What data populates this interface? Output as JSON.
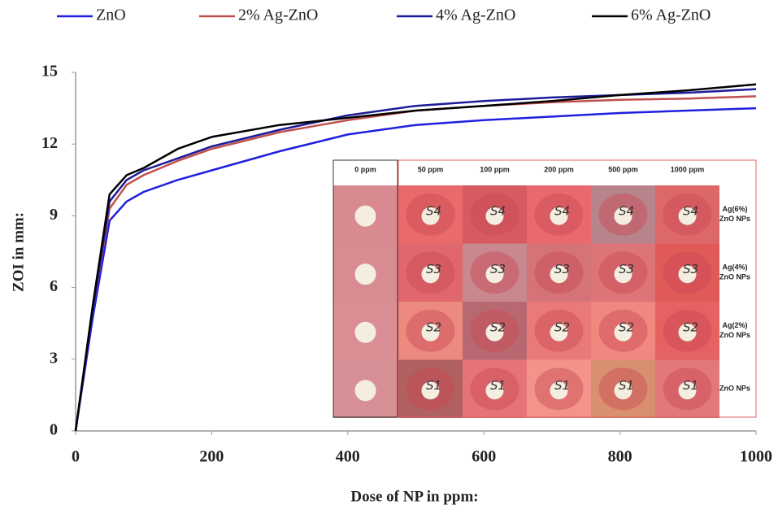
{
  "chart_data": {
    "type": "line",
    "x_label": "Dose of NP in ppm:",
    "y_label": "ZOI in mm:",
    "x": [
      0,
      25,
      50,
      75,
      100,
      150,
      200,
      300,
      400,
      500,
      600,
      700,
      800,
      900,
      1000
    ],
    "series": [
      {
        "name": "ZnO",
        "color": "#1f1fe0",
        "values": [
          0,
          4.7,
          8.8,
          9.6,
          10.0,
          10.5,
          10.9,
          11.7,
          12.4,
          12.8,
          13.0,
          13.15,
          13.3,
          13.4,
          13.5
        ]
      },
      {
        "name": "2% Ag-ZnO",
        "color": "#c0504d",
        "values": [
          0,
          5.0,
          9.3,
          10.3,
          10.7,
          11.3,
          11.8,
          12.5,
          13.0,
          13.4,
          13.6,
          13.75,
          13.85,
          13.9,
          14.0
        ]
      },
      {
        "name": "4% Ag-ZnO",
        "color": "#1c1c9a",
        "values": [
          0,
          5.0,
          9.6,
          10.5,
          10.9,
          11.4,
          11.9,
          12.6,
          13.2,
          13.6,
          13.8,
          13.95,
          14.05,
          14.15,
          14.3
        ]
      },
      {
        "name": "6% Ag-ZnO",
        "color": "#000000",
        "values": [
          0,
          5.2,
          9.9,
          10.7,
          11.0,
          11.8,
          12.3,
          12.8,
          13.1,
          13.4,
          13.6,
          13.8,
          14.05,
          14.25,
          14.5
        ]
      }
    ],
    "xlim": [
      0,
      1000
    ],
    "xticks": [
      0,
      200,
      400,
      600,
      800,
      1000
    ],
    "ylim": [
      0,
      15
    ],
    "yticks": [
      0,
      3,
      6,
      9,
      12,
      15
    ],
    "legend": "top",
    "inset": {
      "columns": [
        "0 ppm",
        "50 ppm",
        "100 ppm",
        "200 ppm",
        "500 ppm",
        "1000 ppm"
      ],
      "rows": [
        {
          "label": [
            "Ag(6%)",
            "ZnO NPs"
          ],
          "tag": "S4"
        },
        {
          "label": [
            "Ag(4%)",
            "ZnO NPs"
          ],
          "tag": "S3"
        },
        {
          "label": [
            "Ag(2%)",
            "ZnO NPs"
          ],
          "tag": "S2"
        },
        {
          "label": [
            "ZnO NPs"
          ],
          "tag": "S1"
        }
      ]
    }
  }
}
